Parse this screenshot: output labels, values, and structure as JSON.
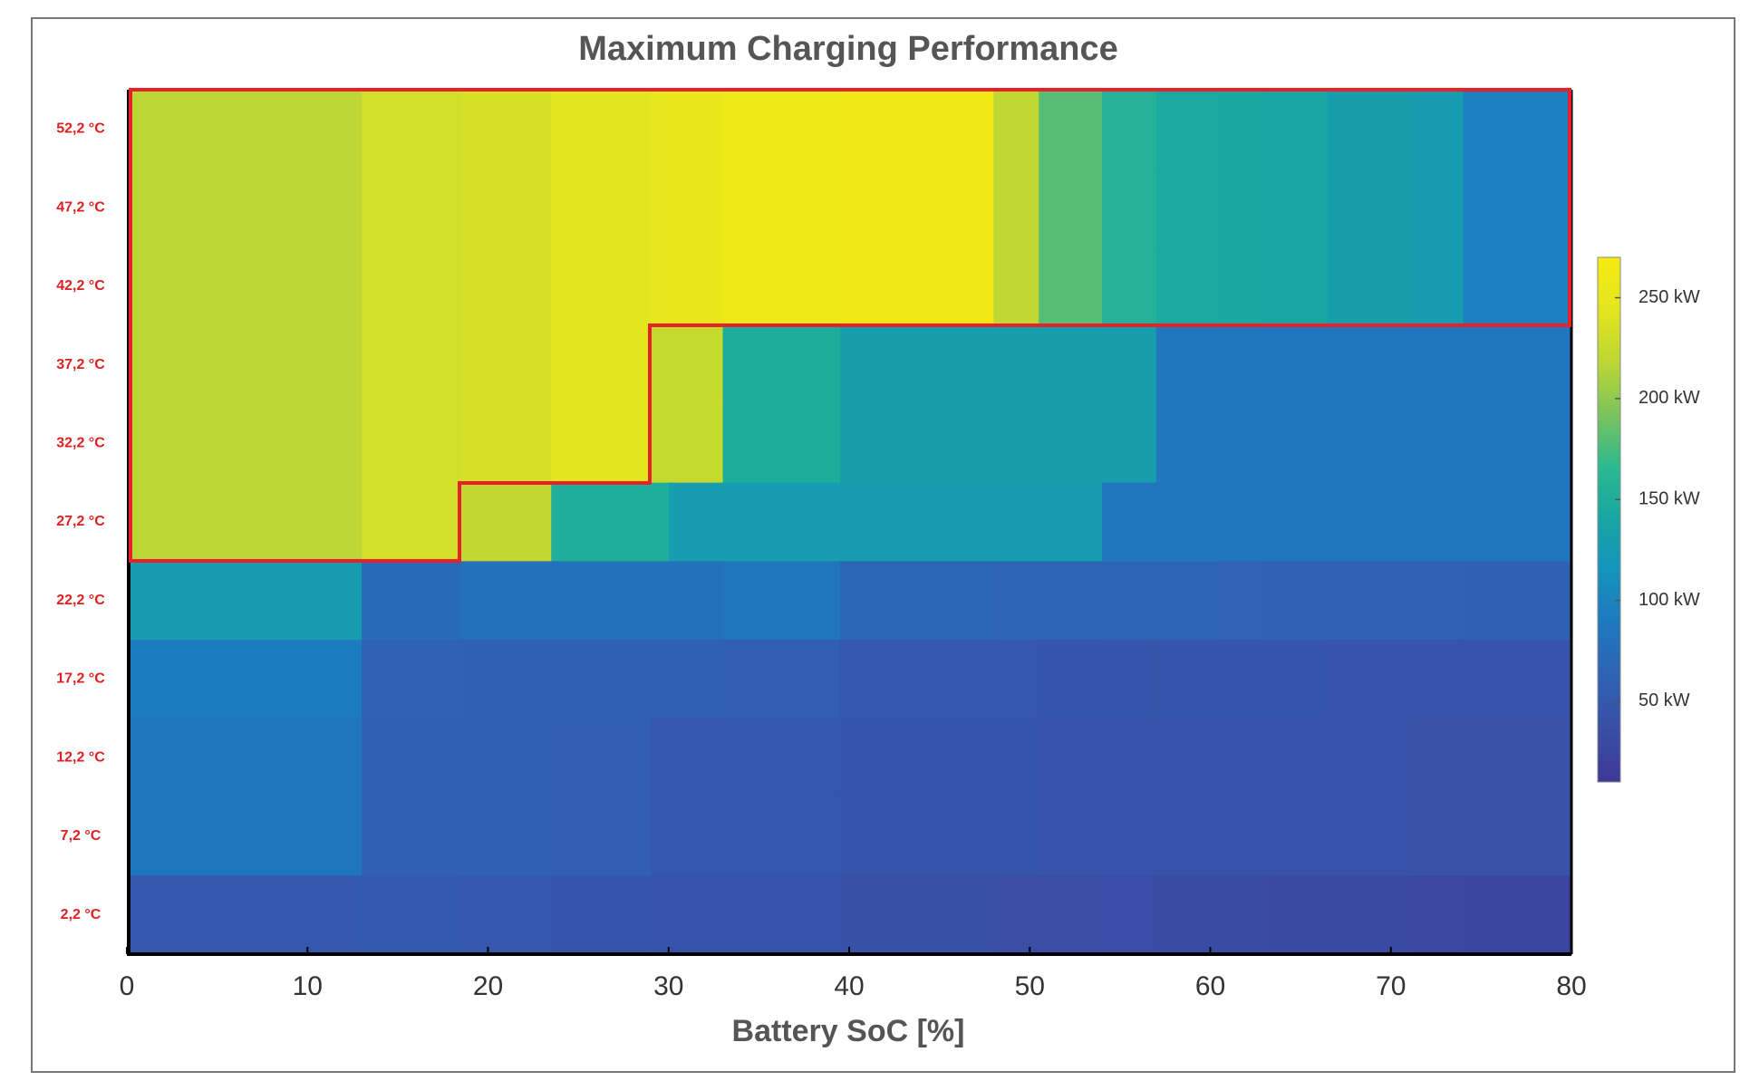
{
  "chart_data": {
    "type": "heatmap",
    "title": "Maximum Charging Performance",
    "x_label": "Battery SoC [%]",
    "xlim": [
      0,
      80
    ],
    "xticks": [
      0,
      10,
      20,
      30,
      40,
      50,
      60,
      70,
      80
    ],
    "x_edges": [
      0,
      13,
      18.5,
      23.5,
      29,
      30,
      33,
      39.5,
      48,
      50.5,
      54,
      57,
      60.5,
      63,
      66.5,
      71,
      74,
      80
    ],
    "y_categories": [
      "52,2 °C",
      "47,2 °C",
      "42,2 °C",
      "37,2 °C",
      "32,2 °C",
      "27,2 °C",
      "22,2 °C",
      "17,2 °C",
      "12,2 °C",
      "7,2 °C",
      "2,2 °C"
    ],
    "values": [
      [
        218,
        232,
        235,
        244,
        248,
        252,
        258,
        262,
        220,
        180,
        155,
        145,
        142,
        140,
        130,
        128,
        95
      ],
      [
        218,
        232,
        235,
        244,
        248,
        252,
        258,
        262,
        220,
        180,
        155,
        145,
        142,
        140,
        130,
        128,
        95
      ],
      [
        218,
        232,
        235,
        244,
        248,
        252,
        258,
        262,
        220,
        180,
        155,
        145,
        142,
        140,
        130,
        128,
        95
      ],
      [
        218,
        232,
        235,
        244,
        225,
        225,
        150,
        130,
        130,
        130,
        130,
        88,
        88,
        88,
        88,
        88,
        88
      ],
      [
        218,
        232,
        235,
        244,
        225,
        225,
        150,
        130,
        130,
        130,
        130,
        88,
        88,
        88,
        88,
        88,
        88
      ],
      [
        218,
        232,
        222,
        152,
        152,
        128,
        128,
        128,
        128,
        128,
        85,
        85,
        85,
        85,
        85,
        85,
        85
      ],
      [
        128,
        72,
        80,
        80,
        80,
        80,
        84,
        68,
        66,
        66,
        66,
        66,
        64,
        62,
        62,
        62,
        60
      ],
      [
        92,
        62,
        60,
        60,
        60,
        60,
        58,
        48,
        48,
        47,
        46,
        46,
        45,
        45,
        44,
        44,
        44
      ],
      [
        86,
        60,
        60,
        58,
        48,
        48,
        48,
        45,
        45,
        44,
        44,
        43,
        43,
        42,
        42,
        41,
        41
      ],
      [
        86,
        60,
        60,
        58,
        48,
        48,
        48,
        45,
        45,
        44,
        44,
        43,
        43,
        42,
        42,
        41,
        41
      ],
      [
        50,
        52,
        48,
        46,
        44,
        44,
        44,
        38,
        36,
        36,
        34,
        32,
        32,
        30,
        30,
        28,
        26
      ]
    ],
    "colorbar": {
      "clim": [
        10,
        270
      ],
      "ticks": [
        {
          "value": 50,
          "label": "50 kW"
        },
        {
          "value": 100,
          "label": "100 kW"
        },
        {
          "value": 150,
          "label": "150 kW"
        },
        {
          "value": 200,
          "label": "200 kW"
        },
        {
          "value": 250,
          "label": "250 kW"
        }
      ],
      "colormap": [
        "#3d3896",
        "#3a4ea6",
        "#2f62b2",
        "#1f78bf",
        "#1592be",
        "#17a6a3",
        "#2bb98f",
        "#7cc35e",
        "#bcd634",
        "#e3e61e",
        "#f6ea12"
      ]
    }
  }
}
